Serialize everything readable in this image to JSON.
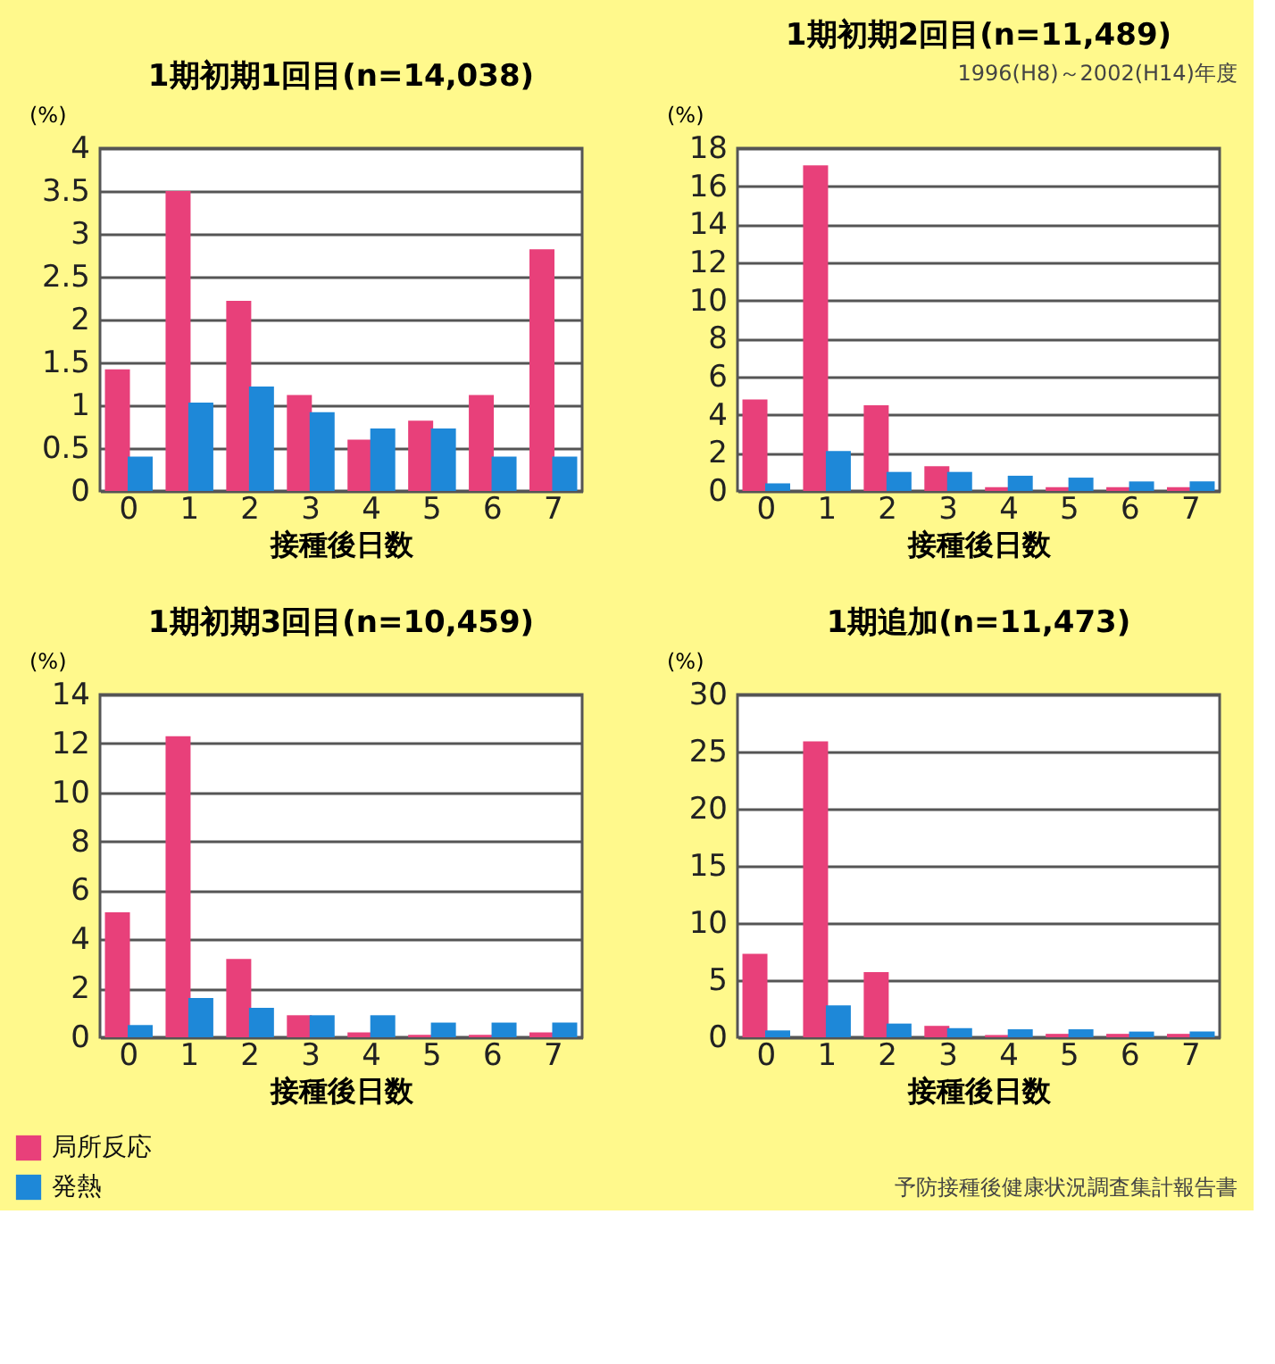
{
  "chart_data": [
    {
      "type": "bar",
      "title": "1期初期1回目(n=14,038)",
      "xlabel": "接種後日数",
      "ylabel": "(%)",
      "categories": [
        "0",
        "1",
        "2",
        "3",
        "4",
        "5",
        "6",
        "7"
      ],
      "ylim": [
        0,
        4
      ],
      "yticks": [
        0,
        0.5,
        1,
        1.5,
        2,
        2.5,
        3,
        3.5,
        4
      ],
      "grid": "y",
      "legend": "bottom left",
      "series": [
        {
          "name": "局所反応",
          "color": "#e8407a",
          "values": [
            1.42,
            3.5,
            2.22,
            1.12,
            0.6,
            0.82,
            1.12,
            2.82
          ]
        },
        {
          "name": "発熱",
          "color": "#1e88d8",
          "values": [
            0.4,
            1.03,
            1.22,
            0.92,
            0.73,
            0.73,
            0.4,
            0.4
          ]
        }
      ]
    },
    {
      "type": "bar",
      "title": "1期初期2回目(n=11,489)",
      "xlabel": "接種後日数",
      "ylabel": "(%)",
      "categories": [
        "0",
        "1",
        "2",
        "3",
        "4",
        "5",
        "6",
        "7"
      ],
      "ylim": [
        0,
        18
      ],
      "yticks": [
        0,
        2,
        4,
        6,
        8,
        10,
        12,
        14,
        16,
        18
      ],
      "grid": "y",
      "annotations": [
        "1996(H8)～2002(H14)年度"
      ],
      "series": [
        {
          "color": "#e8407a",
          "values": [
            4.8,
            17.1,
            4.5,
            1.3,
            0.2,
            0.2,
            0.2,
            0.2
          ]
        },
        {
          "color": "#1e88d8",
          "values": [
            0.4,
            2.1,
            1.0,
            1.0,
            0.8,
            0.7,
            0.5,
            0.5
          ]
        }
      ]
    },
    {
      "type": "bar",
      "title": "1期初期3回目(n=10,459)",
      "xlabel": "接種後日数",
      "ylabel": "(%)",
      "categories": [
        "0",
        "1",
        "2",
        "3",
        "4",
        "5",
        "6",
        "7"
      ],
      "ylim": [
        0,
        14
      ],
      "yticks": [
        0,
        2,
        4,
        6,
        8,
        10,
        12,
        14
      ],
      "grid": "y",
      "series": [
        {
          "color": "#e8407a",
          "values": [
            5.1,
            12.3,
            3.2,
            0.9,
            0.2,
            0.1,
            0.1,
            0.2
          ]
        },
        {
          "color": "#1e88d8",
          "values": [
            0.5,
            1.6,
            1.2,
            0.9,
            0.9,
            0.6,
            0.6,
            0.6
          ]
        }
      ]
    },
    {
      "type": "bar",
      "title": "1期追加(n=11,473)",
      "xlabel": "接種後日数",
      "ylabel": "(%)",
      "categories": [
        "0",
        "1",
        "2",
        "3",
        "4",
        "5",
        "6",
        "7"
      ],
      "ylim": [
        0,
        30
      ],
      "yticks": [
        0,
        5,
        10,
        15,
        20,
        25,
        30
      ],
      "grid": "y",
      "annotations": [
        "予防接種後健康状況調査集計報告書"
      ],
      "series": [
        {
          "color": "#e8407a",
          "values": [
            7.3,
            25.9,
            5.7,
            1.0,
            0.2,
            0.3,
            0.3,
            0.3
          ]
        },
        {
          "color": "#1e88d8",
          "values": [
            0.6,
            2.8,
            1.2,
            0.8,
            0.7,
            0.7,
            0.5,
            0.5
          ]
        }
      ]
    }
  ]
}
